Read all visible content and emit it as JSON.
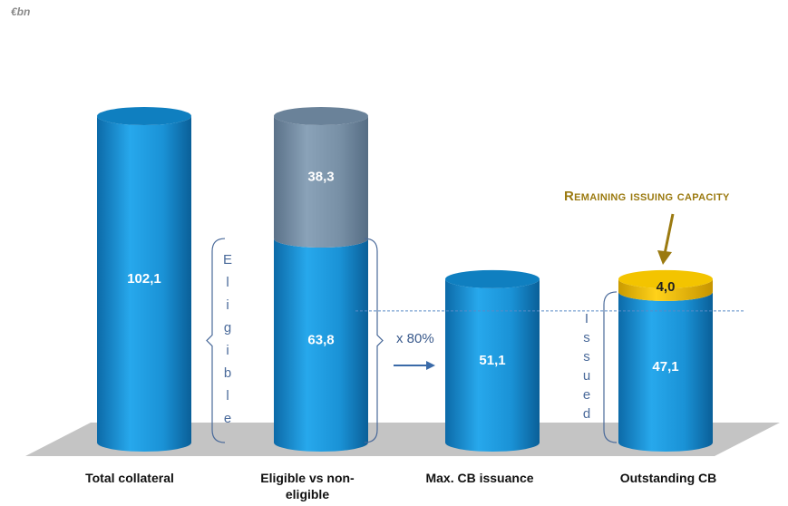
{
  "unit_label": "€bn",
  "annotations": {
    "remaining_capacity": "Remaining issuing capacity",
    "multiplier": "x 80%",
    "eligible_vertical": "Eligible",
    "issued_vertical": "Issued"
  },
  "colors": {
    "blue": "#1a92d6",
    "grey_blue": "#7890a6",
    "gold": "#f2c000",
    "floor": "#c4c4c4",
    "annotation": "#9b7a10"
  },
  "chart_data": {
    "type": "bar",
    "categories": [
      "Total collateral",
      "Eligible vs non-eligible",
      "Max. CB issuance",
      "Outstanding CB"
    ],
    "series": [
      {
        "values": [
          102.1,
          63.8,
          51.1,
          47.1
        ],
        "labels": [
          "102,1",
          "63,8",
          "51,1",
          "47,1"
        ],
        "color": "#1a92d6"
      },
      {
        "values": [
          0,
          38.3,
          0,
          0
        ],
        "labels": [
          "",
          "38,3",
          "",
          ""
        ],
        "color": "#7890a6"
      },
      {
        "values": [
          0,
          0,
          0,
          4.0
        ],
        "labels": [
          "",
          "",
          "",
          "4,0"
        ],
        "color": "#f2c000"
      }
    ],
    "ylim": [
      0,
      102.1
    ],
    "grid": false,
    "legend": "none"
  }
}
